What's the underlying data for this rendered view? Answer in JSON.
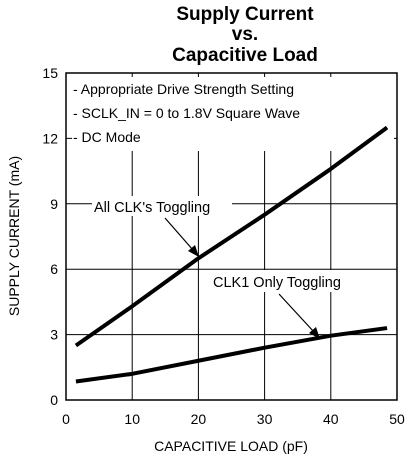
{
  "chart_data": {
    "type": "line",
    "title_lines": [
      "Supply Current",
      "vs.",
      "Capacitive Load"
    ],
    "xlabel": "CAPACITIVE LOAD (pF)",
    "ylabel": "SUPPLY CURRENT (mA)",
    "xlim": [
      0,
      50
    ],
    "ylim": [
      0,
      15
    ],
    "xticks": [
      "0",
      "10",
      "20",
      "30",
      "40",
      "50"
    ],
    "yticks": [
      "0",
      "3",
      "6",
      "9",
      "12",
      "15"
    ],
    "grid": true,
    "notes": [
      "- Appropriate Drive Strength Setting",
      "- SCLK_IN = 0 to 1.8V Square Wave",
      "- DC Mode"
    ],
    "series": [
      {
        "name": "All CLK's Toggling",
        "x": [
          1.5,
          10,
          20,
          30,
          40,
          48.5
        ],
        "y": [
          2.5,
          4.3,
          6.5,
          8.5,
          10.6,
          12.5
        ]
      },
      {
        "name": "CLK1 Only Toggling",
        "x": [
          1.5,
          10,
          20,
          30,
          40,
          48.5
        ],
        "y": [
          0.85,
          1.2,
          1.8,
          2.4,
          2.95,
          3.3
        ]
      }
    ]
  }
}
